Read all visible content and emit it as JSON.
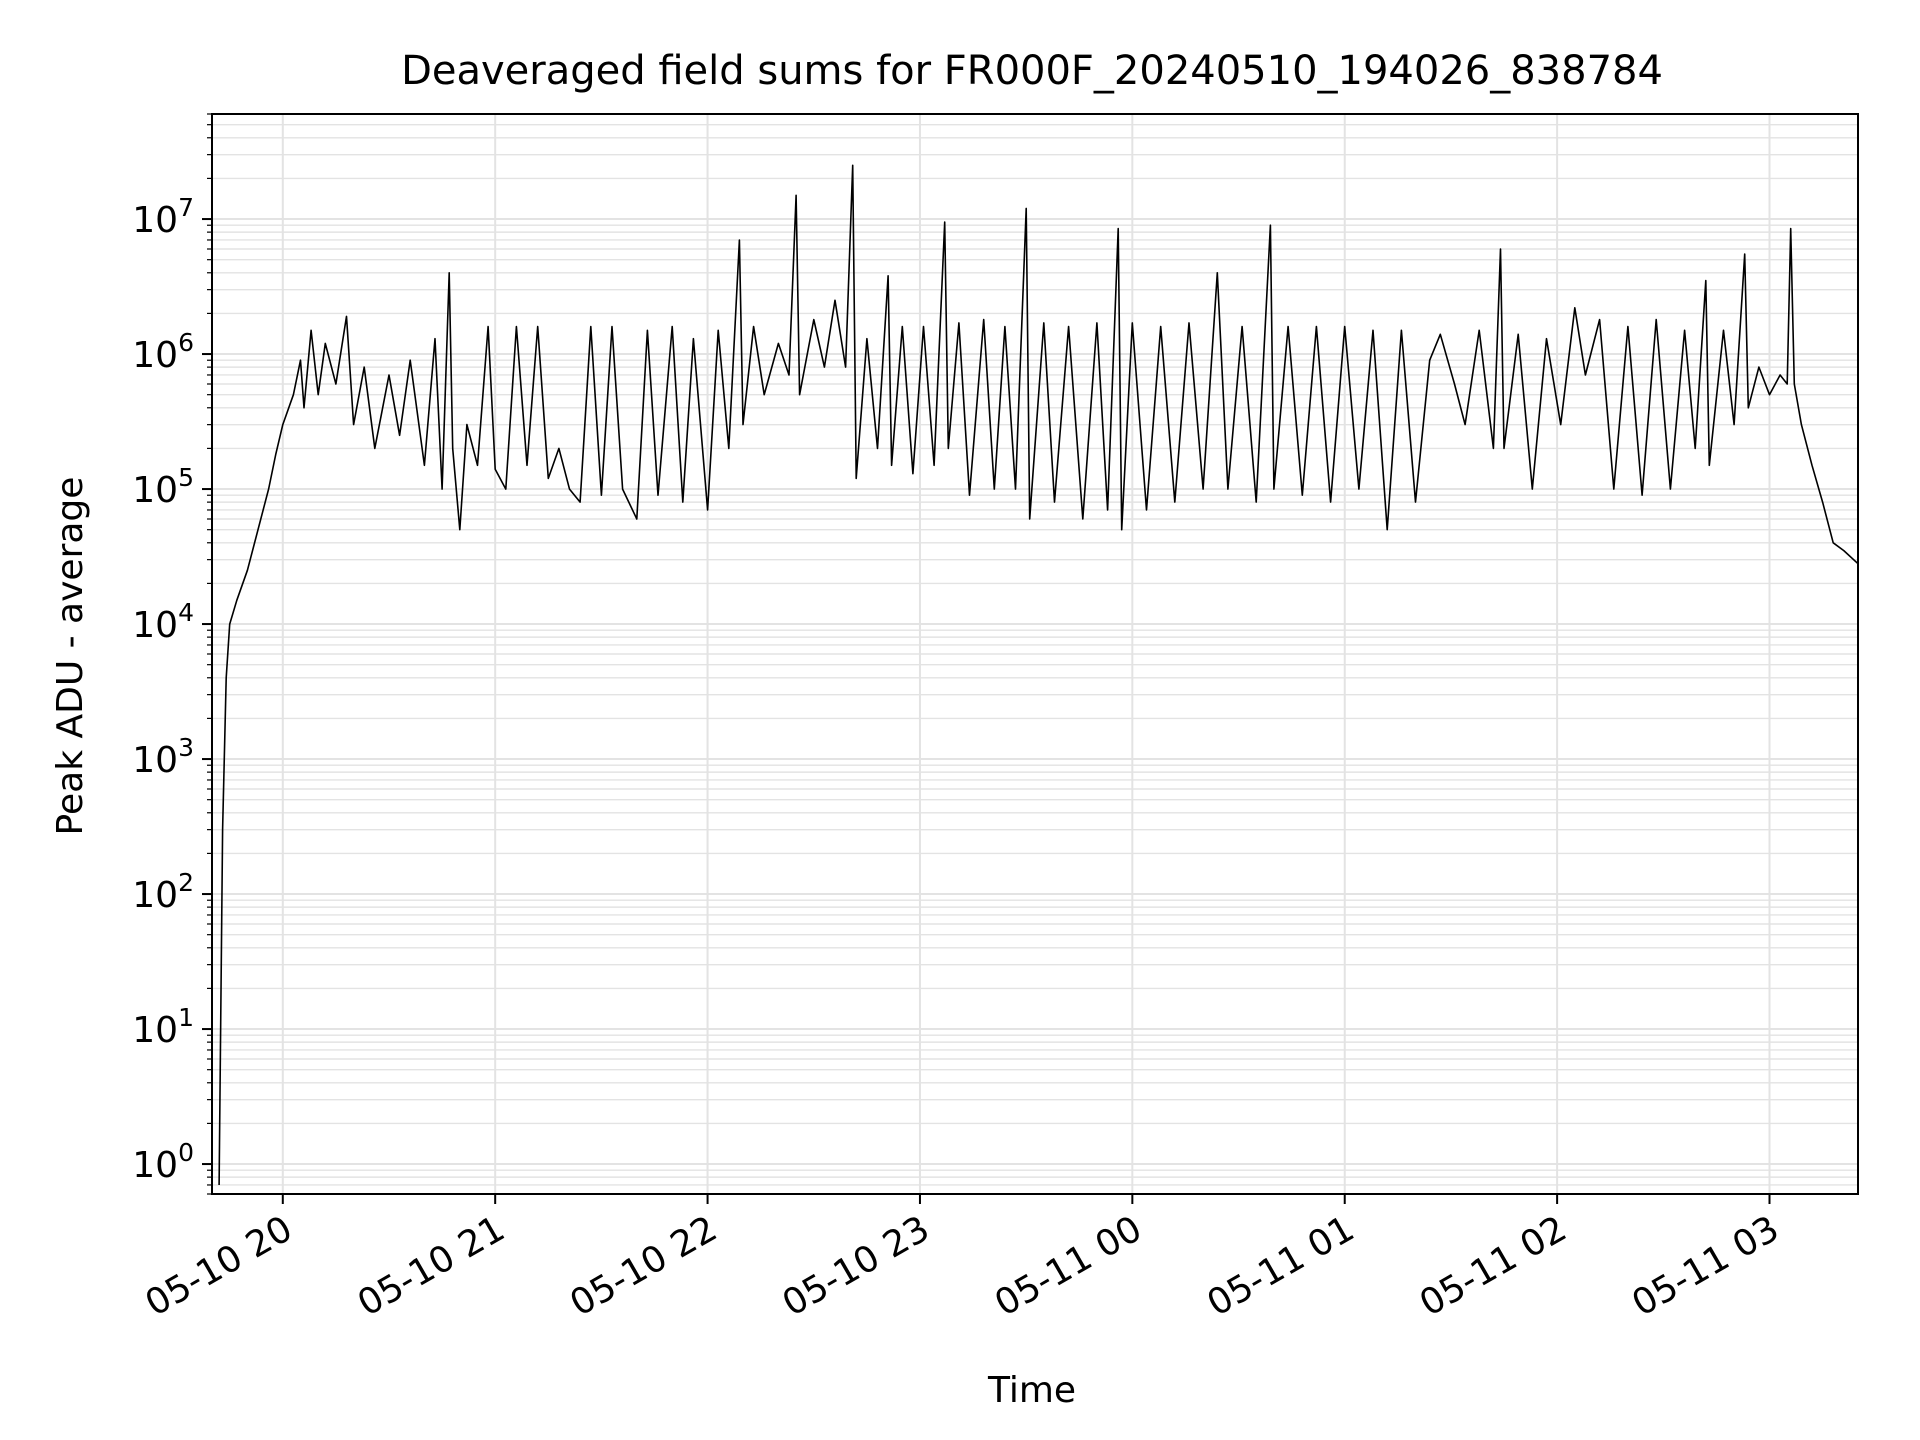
{
  "chart_data": {
    "type": "line",
    "title": "Deaveraged field sums for FR000F_20240510_194026_838784",
    "xlabel": "Time",
    "ylabel": "Peak ADU - average",
    "x_scale": "time",
    "y_scale": "log",
    "xlim": [
      "2024-05-10 19:40",
      "2024-05-11 03:25"
    ],
    "ylim": [
      0.6,
      60000000
    ],
    "grid": true,
    "x_ticks": [
      {
        "value": "2024-05-10 20:00",
        "label": "05-10 20"
      },
      {
        "value": "2024-05-10 21:00",
        "label": "05-10 21"
      },
      {
        "value": "2024-05-10 22:00",
        "label": "05-10 22"
      },
      {
        "value": "2024-05-10 23:00",
        "label": "05-10 23"
      },
      {
        "value": "2024-05-11 00:00",
        "label": "05-11 00"
      },
      {
        "value": "2024-05-11 01:00",
        "label": "05-11 01"
      },
      {
        "value": "2024-05-11 02:00",
        "label": "05-11 02"
      },
      {
        "value": "2024-05-11 03:00",
        "label": "05-11 03"
      }
    ],
    "y_ticks": [
      {
        "value": 1,
        "base": "10",
        "exp": "0"
      },
      {
        "value": 10,
        "base": "10",
        "exp": "1"
      },
      {
        "value": 100,
        "base": "10",
        "exp": "2"
      },
      {
        "value": 1000,
        "base": "10",
        "exp": "3"
      },
      {
        "value": 10000,
        "base": "10",
        "exp": "4"
      },
      {
        "value": 100000,
        "base": "10",
        "exp": "5"
      },
      {
        "value": 1000000,
        "base": "10",
        "exp": "6"
      },
      {
        "value": 10000000,
        "base": "10",
        "exp": "7"
      }
    ],
    "series": [
      {
        "color": "#000000",
        "points": [
          [
            "2024-05-10 19:42",
            0.7
          ],
          [
            "2024-05-10 19:43",
            300
          ],
          [
            "2024-05-10 19:44",
            4000
          ],
          [
            "2024-05-10 19:45",
            10000
          ],
          [
            "2024-05-10 19:47",
            15000
          ],
          [
            "2024-05-10 19:50",
            25000
          ],
          [
            "2024-05-10 19:53",
            50000
          ],
          [
            "2024-05-10 19:56",
            100000
          ],
          [
            "2024-05-10 19:58",
            180000
          ],
          [
            "2024-05-10 20:00",
            300000
          ],
          [
            "2024-05-10 20:03",
            500000
          ],
          [
            "2024-05-10 20:05",
            900000
          ],
          [
            "2024-05-10 20:06",
            400000
          ],
          [
            "2024-05-10 20:08",
            1500000
          ],
          [
            "2024-05-10 20:10",
            500000
          ],
          [
            "2024-05-10 20:12",
            1200000
          ],
          [
            "2024-05-10 20:15",
            600000
          ],
          [
            "2024-05-10 20:18",
            1900000
          ],
          [
            "2024-05-10 20:20",
            300000
          ],
          [
            "2024-05-10 20:23",
            800000
          ],
          [
            "2024-05-10 20:26",
            200000
          ],
          [
            "2024-05-10 20:30",
            700000
          ],
          [
            "2024-05-10 20:33",
            250000
          ],
          [
            "2024-05-10 20:36",
            900000
          ],
          [
            "2024-05-10 20:40",
            150000
          ],
          [
            "2024-05-10 20:43",
            1300000
          ],
          [
            "2024-05-10 20:45",
            100000
          ],
          [
            "2024-05-10 20:47",
            4000000
          ],
          [
            "2024-05-10 20:48",
            200000
          ],
          [
            "2024-05-10 20:50",
            50000
          ],
          [
            "2024-05-10 20:52",
            300000
          ],
          [
            "2024-05-10 20:55",
            150000
          ],
          [
            "2024-05-10 20:58",
            1600000
          ],
          [
            "2024-05-10 21:00",
            140000
          ],
          [
            "2024-05-10 21:03",
            100000
          ],
          [
            "2024-05-10 21:06",
            1600000
          ],
          [
            "2024-05-10 21:09",
            150000
          ],
          [
            "2024-05-10 21:12",
            1600000
          ],
          [
            "2024-05-10 21:15",
            120000
          ],
          [
            "2024-05-10 21:18",
            200000
          ],
          [
            "2024-05-10 21:21",
            100000
          ],
          [
            "2024-05-10 21:24",
            80000
          ],
          [
            "2024-05-10 21:27",
            1600000
          ],
          [
            "2024-05-10 21:30",
            90000
          ],
          [
            "2024-05-10 21:33",
            1600000
          ],
          [
            "2024-05-10 21:36",
            100000
          ],
          [
            "2024-05-10 21:40",
            60000
          ],
          [
            "2024-05-10 21:43",
            1500000
          ],
          [
            "2024-05-10 21:46",
            90000
          ],
          [
            "2024-05-10 21:50",
            1600000
          ],
          [
            "2024-05-10 21:53",
            80000
          ],
          [
            "2024-05-10 21:56",
            1300000
          ],
          [
            "2024-05-10 22:00",
            70000
          ],
          [
            "2024-05-10 22:03",
            1500000
          ],
          [
            "2024-05-10 22:06",
            200000
          ],
          [
            "2024-05-10 22:09",
            7000000
          ],
          [
            "2024-05-10 22:10",
            300000
          ],
          [
            "2024-05-10 22:13",
            1600000
          ],
          [
            "2024-05-10 22:16",
            500000
          ],
          [
            "2024-05-10 22:20",
            1200000
          ],
          [
            "2024-05-10 22:23",
            700000
          ],
          [
            "2024-05-10 22:25",
            15000000
          ],
          [
            "2024-05-10 22:26",
            500000
          ],
          [
            "2024-05-10 22:30",
            1800000
          ],
          [
            "2024-05-10 22:33",
            800000
          ],
          [
            "2024-05-10 22:36",
            2500000
          ],
          [
            "2024-05-10 22:39",
            800000
          ],
          [
            "2024-05-10 22:41",
            25000000
          ],
          [
            "2024-05-10 22:42",
            120000
          ],
          [
            "2024-05-10 22:45",
            1300000
          ],
          [
            "2024-05-10 22:48",
            200000
          ],
          [
            "2024-05-10 22:51",
            3800000
          ],
          [
            "2024-05-10 22:52",
            150000
          ],
          [
            "2024-05-10 22:55",
            1600000
          ],
          [
            "2024-05-10 22:58",
            130000
          ],
          [
            "2024-05-10 23:01",
            1600000
          ],
          [
            "2024-05-10 23:04",
            150000
          ],
          [
            "2024-05-10 23:07",
            9500000
          ],
          [
            "2024-05-10 23:08",
            200000
          ],
          [
            "2024-05-10 23:11",
            1700000
          ],
          [
            "2024-05-10 23:14",
            90000
          ],
          [
            "2024-05-10 23:18",
            1800000
          ],
          [
            "2024-05-10 23:21",
            100000
          ],
          [
            "2024-05-10 23:24",
            1600000
          ],
          [
            "2024-05-10 23:27",
            100000
          ],
          [
            "2024-05-10 23:30",
            12000000
          ],
          [
            "2024-05-10 23:31",
            60000
          ],
          [
            "2024-05-10 23:35",
            1700000
          ],
          [
            "2024-05-10 23:38",
            80000
          ],
          [
            "2024-05-10 23:42",
            1600000
          ],
          [
            "2024-05-10 23:46",
            60000
          ],
          [
            "2024-05-10 23:50",
            1700000
          ],
          [
            "2024-05-10 23:53",
            70000
          ],
          [
            "2024-05-10 23:56",
            8500000
          ],
          [
            "2024-05-10 23:57",
            50000
          ],
          [
            "2024-05-11 00:00",
            1700000
          ],
          [
            "2024-05-11 00:04",
            70000
          ],
          [
            "2024-05-11 00:08",
            1600000
          ],
          [
            "2024-05-11 00:12",
            80000
          ],
          [
            "2024-05-11 00:16",
            1700000
          ],
          [
            "2024-05-11 00:20",
            100000
          ],
          [
            "2024-05-11 00:24",
            4000000
          ],
          [
            "2024-05-11 00:27",
            100000
          ],
          [
            "2024-05-11 00:31",
            1600000
          ],
          [
            "2024-05-11 00:35",
            80000
          ],
          [
            "2024-05-11 00:39",
            9000000
          ],
          [
            "2024-05-11 00:40",
            100000
          ],
          [
            "2024-05-11 00:44",
            1600000
          ],
          [
            "2024-05-11 00:48",
            90000
          ],
          [
            "2024-05-11 00:52",
            1600000
          ],
          [
            "2024-05-11 00:56",
            80000
          ],
          [
            "2024-05-11 01:00",
            1600000
          ],
          [
            "2024-05-11 01:04",
            100000
          ],
          [
            "2024-05-11 01:08",
            1500000
          ],
          [
            "2024-05-11 01:12",
            50000
          ],
          [
            "2024-05-11 01:16",
            1500000
          ],
          [
            "2024-05-11 01:20",
            80000
          ],
          [
            "2024-05-11 01:24",
            900000
          ],
          [
            "2024-05-11 01:27",
            1400000
          ],
          [
            "2024-05-11 01:31",
            600000
          ],
          [
            "2024-05-11 01:34",
            300000
          ],
          [
            "2024-05-11 01:38",
            1500000
          ],
          [
            "2024-05-11 01:42",
            200000
          ],
          [
            "2024-05-11 01:44",
            6000000
          ],
          [
            "2024-05-11 01:45",
            200000
          ],
          [
            "2024-05-11 01:49",
            1400000
          ],
          [
            "2024-05-11 01:53",
            100000
          ],
          [
            "2024-05-11 01:57",
            1300000
          ],
          [
            "2024-05-11 02:01",
            300000
          ],
          [
            "2024-05-11 02:05",
            2200000
          ],
          [
            "2024-05-11 02:08",
            700000
          ],
          [
            "2024-05-11 02:12",
            1800000
          ],
          [
            "2024-05-11 02:16",
            100000
          ],
          [
            "2024-05-11 02:20",
            1600000
          ],
          [
            "2024-05-11 02:24",
            90000
          ],
          [
            "2024-05-11 02:28",
            1800000
          ],
          [
            "2024-05-11 02:32",
            100000
          ],
          [
            "2024-05-11 02:36",
            1500000
          ],
          [
            "2024-05-11 02:39",
            200000
          ],
          [
            "2024-05-11 02:42",
            3500000
          ],
          [
            "2024-05-11 02:43",
            150000
          ],
          [
            "2024-05-11 02:47",
            1500000
          ],
          [
            "2024-05-11 02:50",
            300000
          ],
          [
            "2024-05-11 02:53",
            5500000
          ],
          [
            "2024-05-11 02:54",
            400000
          ],
          [
            "2024-05-11 02:57",
            800000
          ],
          [
            "2024-05-11 03:00",
            500000
          ],
          [
            "2024-05-11 03:03",
            700000
          ],
          [
            "2024-05-11 03:05",
            600000
          ],
          [
            "2024-05-11 03:06",
            8500000
          ],
          [
            "2024-05-11 03:07",
            600000
          ],
          [
            "2024-05-11 03:09",
            300000
          ],
          [
            "2024-05-11 03:12",
            150000
          ],
          [
            "2024-05-11 03:15",
            80000
          ],
          [
            "2024-05-11 03:18",
            40000
          ],
          [
            "2024-05-11 03:21",
            35000
          ],
          [
            "2024-05-11 03:25",
            28000
          ]
        ]
      }
    ]
  }
}
